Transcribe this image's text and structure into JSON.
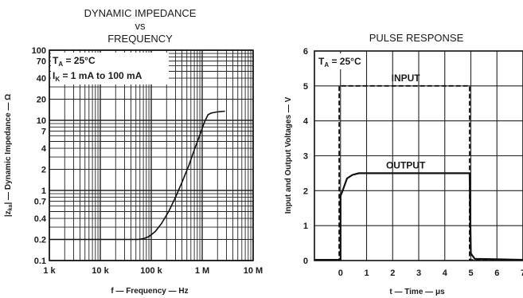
{
  "chart_data": [
    {
      "type": "line",
      "title_lines": [
        "DYNAMIC IMPEDANCE",
        "vs",
        "FREQUENCY"
      ],
      "xlabel": "f — Frequency — Hz",
      "ylabel": "|zka| — Dynamic Impedance — Ω",
      "ylabel_parts": {
        "pre": "|z",
        "sub": "ka",
        "post": "| — Dynamic Impedance — Ω"
      },
      "x_scale": "log",
      "y_scale": "log",
      "xlim": [
        1000,
        10000000
      ],
      "ylim": [
        0.1,
        100
      ],
      "grid": true,
      "x_ticks": [
        {
          "value": 1000,
          "label": "1 k"
        },
        {
          "value": 10000,
          "label": "10 k"
        },
        {
          "value": 100000,
          "label": "100 k"
        },
        {
          "value": 1000000,
          "label": "1 M"
        },
        {
          "value": 10000000,
          "label": "10 M"
        }
      ],
      "y_ticks": [
        {
          "value": 100,
          "label": "100"
        },
        {
          "value": 70,
          "label": "70"
        },
        {
          "value": 40,
          "label": "40"
        },
        {
          "value": 20,
          "label": "20"
        },
        {
          "value": 10,
          "label": "10"
        },
        {
          "value": 7,
          "label": "7"
        },
        {
          "value": 4,
          "label": "4"
        },
        {
          "value": 2,
          "label": "2"
        },
        {
          "value": 1,
          "label": "1"
        },
        {
          "value": 0.7,
          "label": "0.7"
        },
        {
          "value": 0.4,
          "label": "0.4"
        },
        {
          "value": 0.2,
          "label": "0.2"
        },
        {
          "value": 0.1,
          "label": "0.1"
        }
      ],
      "annotation_lines": [
        {
          "pre": "T",
          "sub": "A",
          "post": " = 25°C"
        },
        {
          "pre": "I",
          "sub": "K",
          "post": " = 1 mA to 100 mA"
        }
      ],
      "series": [
        {
          "x": [
            1000,
            10000,
            40000,
            55000,
            70000,
            90000,
            120000,
            160000,
            220000,
            300000,
            400000,
            550000,
            700000,
            900000,
            1100000,
            1300000,
            1500000,
            2000000,
            2800000
          ],
          "y": [
            0.2,
            0.2,
            0.2,
            0.2,
            0.205,
            0.22,
            0.26,
            0.34,
            0.5,
            0.8,
            1.3,
            2.3,
            3.8,
            6.2,
            9.3,
            12,
            12.7,
            13.2,
            13.5
          ]
        }
      ]
    },
    {
      "type": "line",
      "title": "PULSE RESPONSE",
      "xlabel": "t — Time — μs",
      "ylabel": "Input and Output Voltages — V",
      "xlim": [
        -1,
        7
      ],
      "ylim": [
        0,
        6
      ],
      "grid": true,
      "x_ticks": [
        {
          "value": 0,
          "label": "0"
        },
        {
          "value": 1,
          "label": "1"
        },
        {
          "value": 2,
          "label": "2"
        },
        {
          "value": 3,
          "label": "3"
        },
        {
          "value": 4,
          "label": "4"
        },
        {
          "value": 5,
          "label": "5"
        },
        {
          "value": 6,
          "label": "6"
        },
        {
          "value": 7,
          "label": "7"
        }
      ],
      "y_ticks": [
        {
          "value": 0,
          "label": "0"
        },
        {
          "value": 1,
          "label": "1"
        },
        {
          "value": 2,
          "label": "2"
        },
        {
          "value": 3,
          "label": "3"
        },
        {
          "value": 4,
          "label": "4"
        },
        {
          "value": 5,
          "label": "5"
        },
        {
          "value": 6,
          "label": "6"
        }
      ],
      "annotation_lines": [
        {
          "pre": "T",
          "sub": "A",
          "post": " = 25°C"
        }
      ],
      "series": [
        {
          "name": "INPUT",
          "style": "dashed",
          "x": [
            -1,
            -0.05,
            -0.05,
            4.95,
            4.95,
            7
          ],
          "y": [
            0.02,
            0.02,
            5,
            5,
            0.02,
            0.02
          ]
        },
        {
          "name": "OUTPUT",
          "style": "solid",
          "x": [
            -1,
            0,
            0,
            0.08,
            0.25,
            0.45,
            0.7,
            1.0,
            4.95,
            5.0,
            5.15,
            7
          ],
          "y": [
            0.02,
            0.02,
            1.85,
            2.0,
            2.35,
            2.45,
            2.5,
            2.5,
            2.5,
            0.2,
            0.05,
            0.02
          ]
        }
      ]
    }
  ]
}
